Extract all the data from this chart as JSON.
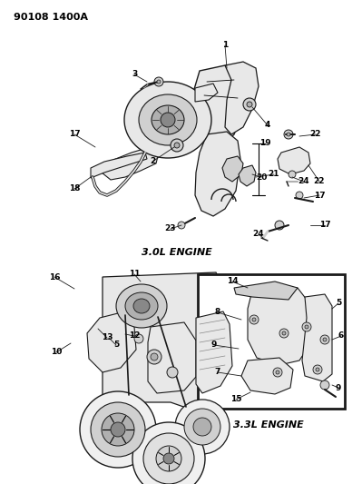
{
  "title": "90108 1400A",
  "background_color": "#ffffff",
  "text_color": "#000000",
  "fig_width": 3.99,
  "fig_height": 5.33,
  "dpi": 100,
  "top_engine_label": "3.0L ENGINE",
  "bottom_engine_label": "3.3L ENGINE",
  "line_color": "#1a1a1a",
  "fill_light": "#e8e8e8",
  "fill_mid": "#d0d0d0",
  "fill_dark": "#b0b0b0"
}
